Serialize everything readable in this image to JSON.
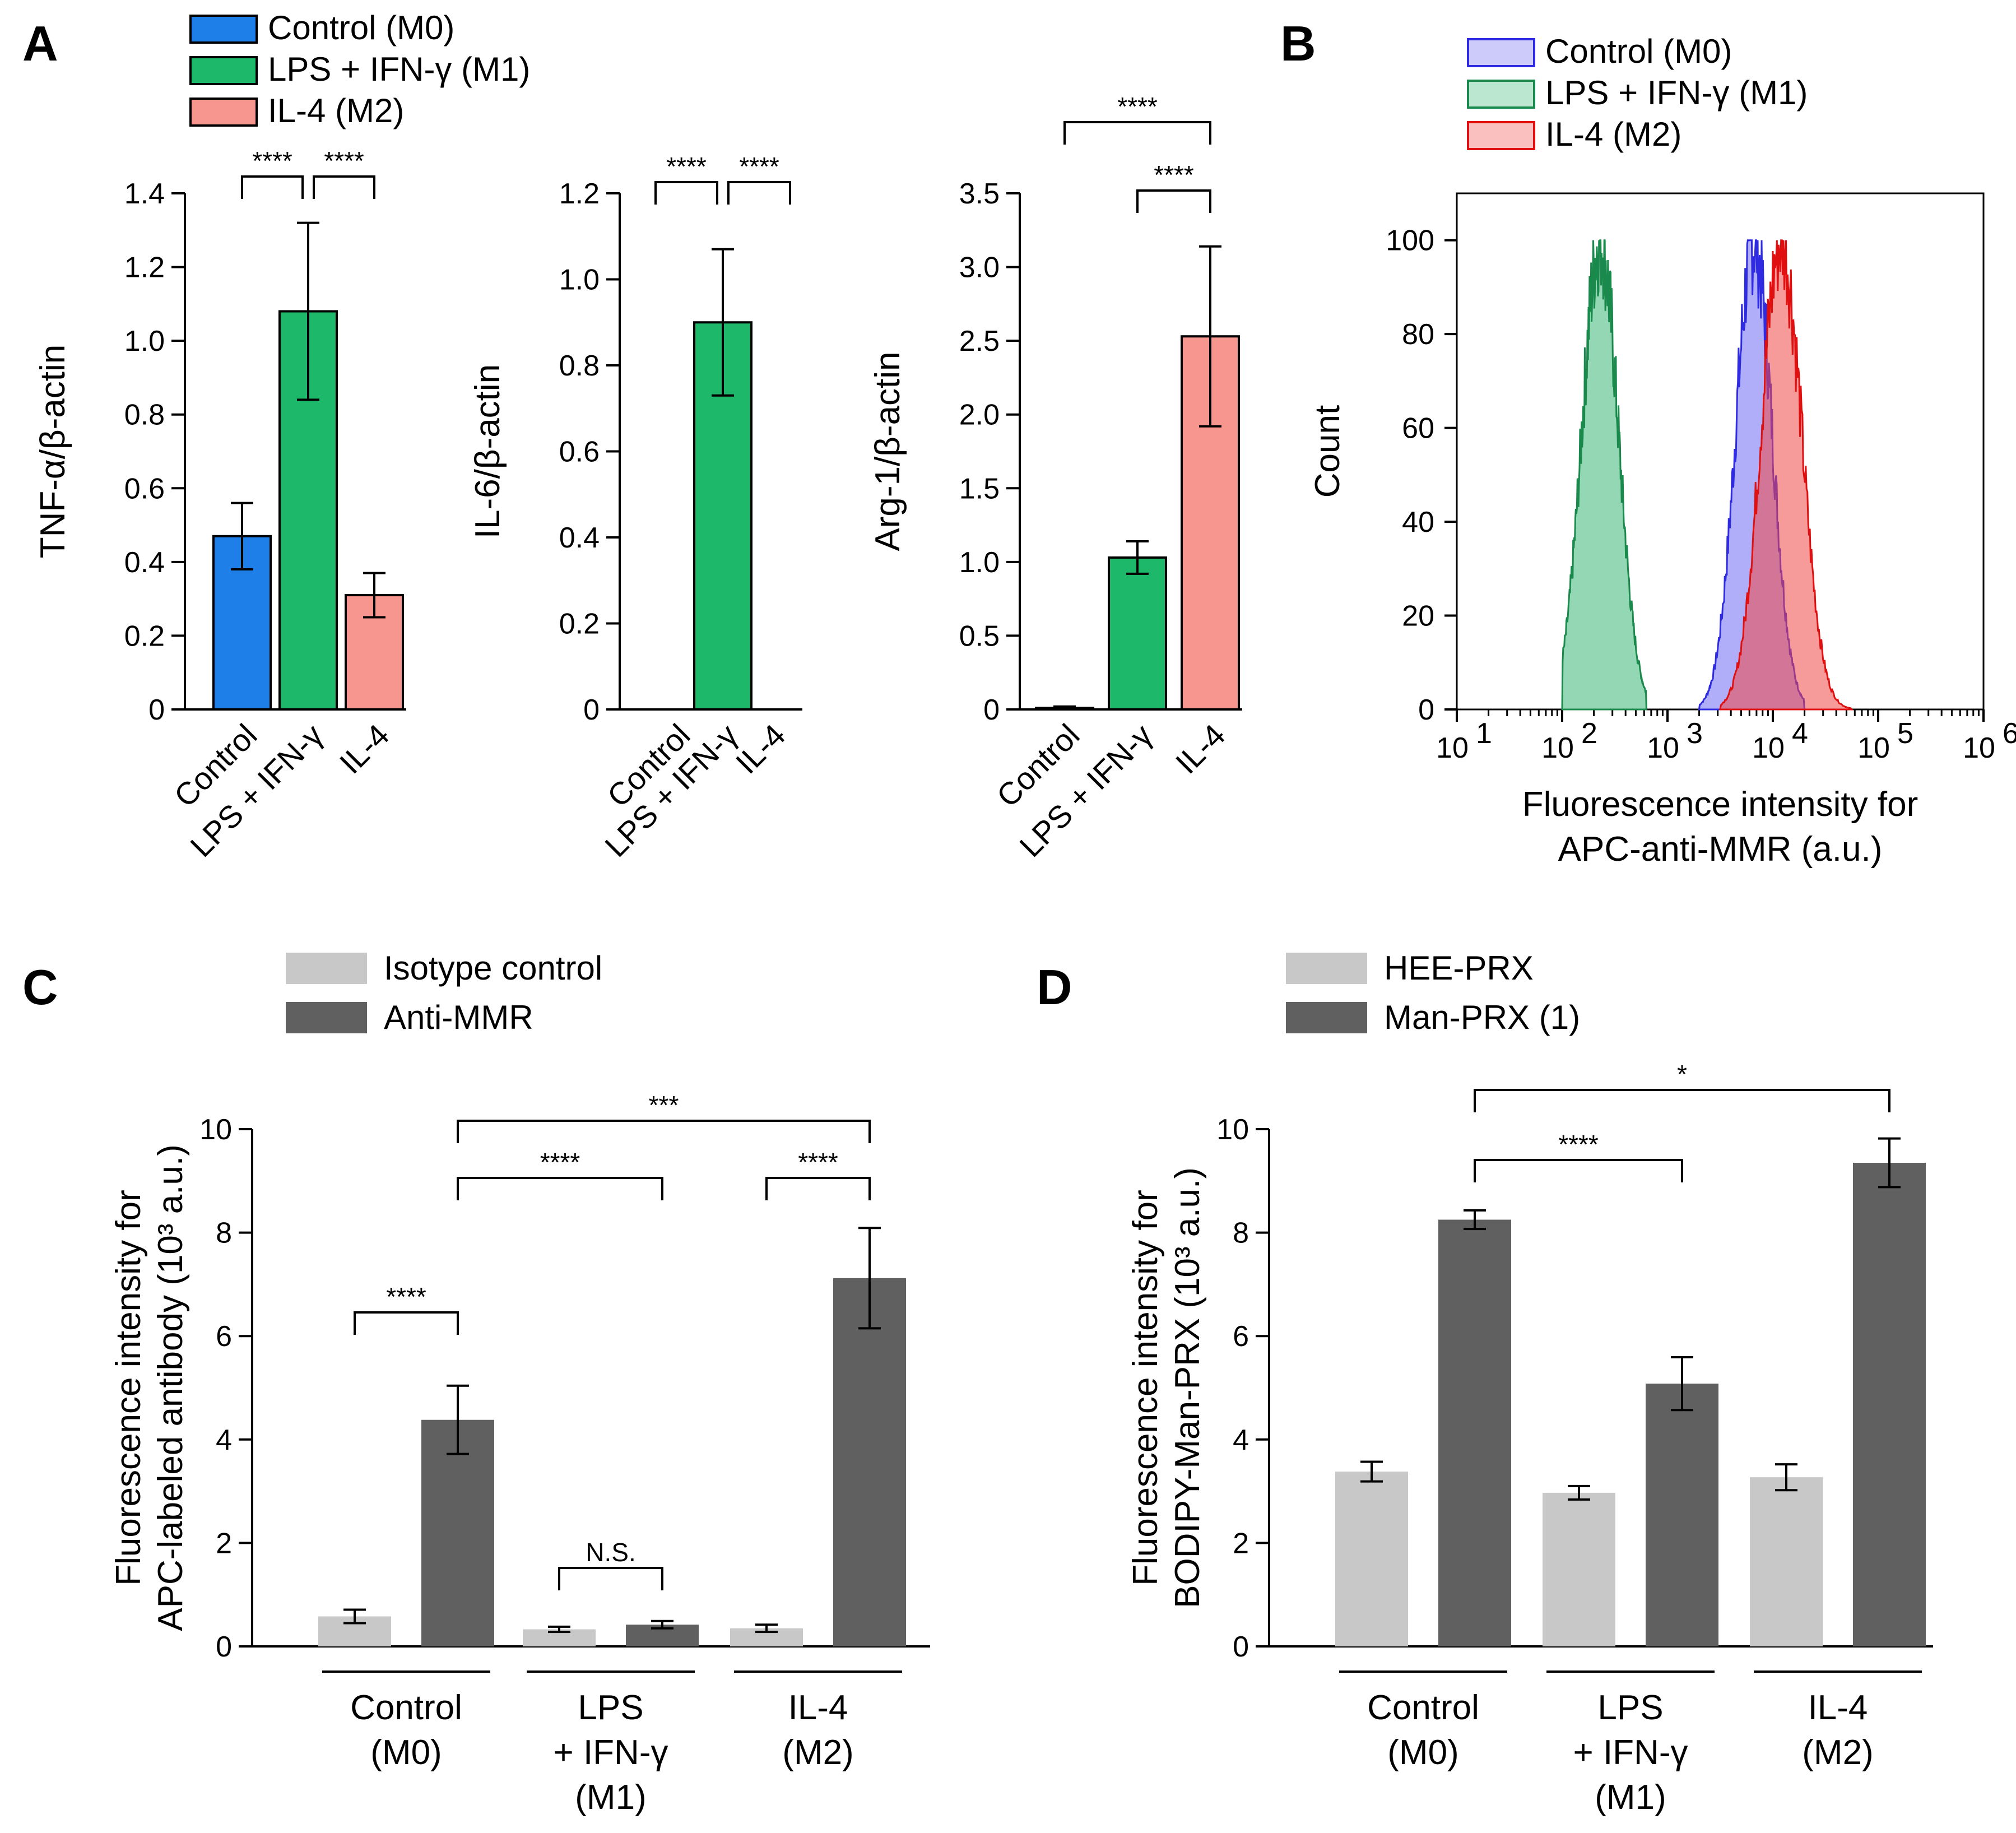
{
  "panel_labels": [
    "A",
    "B",
    "C",
    "D"
  ],
  "colors": {
    "control": "#1E7FE8",
    "m1": "#1DB86A",
    "m2": "#F7968E",
    "light_gray": "#C8C8C8",
    "dark_gray": "#606060",
    "hist_blue": "#6F6BF2",
    "hist_green": "#3DB678",
    "hist_red": "#F04747"
  },
  "chart_data": [
    {
      "id": "A1",
      "type": "bar",
      "title": "",
      "legend": [
        "Control (M0)",
        "LPS + IFN-γ (M1)",
        "IL-4 (M2)"
      ],
      "categories": [
        "Control",
        "LPS + IFN-γ",
        "IL-4"
      ],
      "values": [
        0.47,
        1.08,
        0.31
      ],
      "errors": [
        0.09,
        0.24,
        0.06
      ],
      "ylabel": "TNF-α/β-actin",
      "ylim": [
        0,
        1.4
      ],
      "yticks": [
        "0",
        "0.2",
        "0.4",
        "0.6",
        "0.8",
        "1.0",
        "1.2",
        "1.4"
      ],
      "significance": [
        {
          "from": 0,
          "to": 1,
          "label": "****"
        },
        {
          "from": 1,
          "to": 2,
          "label": "****"
        }
      ]
    },
    {
      "id": "A2",
      "type": "bar",
      "categories": [
        "Control",
        "LPS + IFN-γ",
        "IL-4"
      ],
      "values": [
        0.0,
        0.9,
        0.0
      ],
      "errors": [
        0.0,
        0.17,
        0.0
      ],
      "ylabel": "IL-6/β-actin",
      "ylim": [
        0,
        1.2
      ],
      "yticks": [
        "0",
        "0.2",
        "0.4",
        "0.6",
        "0.8",
        "1.0",
        "1.2"
      ],
      "significance": [
        {
          "from": 0,
          "to": 1,
          "label": "****"
        },
        {
          "from": 1,
          "to": 2,
          "label": "****"
        }
      ]
    },
    {
      "id": "A3",
      "type": "bar",
      "categories": [
        "Control",
        "LPS + IFN-γ",
        "IL-4"
      ],
      "values": [
        0.01,
        1.03,
        2.53
      ],
      "errors": [
        0.01,
        0.11,
        0.61
      ],
      "ylabel": "Arg-1/β-actin",
      "ylim": [
        0,
        3.5
      ],
      "yticks": [
        "0",
        "0.5",
        "1.0",
        "1.5",
        "2.0",
        "2.5",
        "3.0",
        "3.5"
      ],
      "significance": [
        {
          "from": 0,
          "to": 2,
          "label": "****"
        },
        {
          "from": 1,
          "to": 2,
          "label": "****"
        }
      ]
    },
    {
      "id": "B",
      "type": "area",
      "xscale": "log",
      "xlim_exp": [
        1,
        6
      ],
      "xticks": [
        "10",
        "10",
        "10",
        "10",
        "10",
        "10"
      ],
      "xtick_exponents": [
        "1",
        "2",
        "3",
        "4",
        "5",
        "6"
      ],
      "ylim": [
        0,
        110
      ],
      "yticks": [
        "0",
        "20",
        "40",
        "60",
        "80",
        "100"
      ],
      "ylabel": "Count",
      "xlabel_line1": "Fluorescence intensity for",
      "xlabel_line2": "APC-anti-MMR (a.u.)",
      "legend": [
        "Control (M0)",
        "LPS + IFN-γ (M1)",
        "IL-4 (M2)"
      ],
      "series": [
        {
          "name": "Control (M0)",
          "peak_log10": 3.82,
          "sigma": 0.17,
          "start_log10": 3.3,
          "end_log10": 4.3,
          "max_count": 100
        },
        {
          "name": "LPS + IFN-γ (M1)",
          "peak_log10": 2.36,
          "sigma": 0.17,
          "start_log10": 2.0,
          "end_log10": 2.8,
          "max_count": 100
        },
        {
          "name": "IL-4 (M2)",
          "peak_log10": 4.08,
          "sigma": 0.19,
          "start_log10": 3.5,
          "end_log10": 4.75,
          "max_count": 100
        }
      ]
    },
    {
      "id": "C",
      "type": "bar",
      "legend": [
        "Isotype control",
        "Anti-MMR"
      ],
      "groups": [
        "Control\n(M0)",
        "LPS\n+ IFN-γ\n(M1)",
        "IL-4\n(M2)"
      ],
      "series": [
        {
          "name": "Isotype control",
          "values": [
            0.58,
            0.33,
            0.35
          ],
          "errors": [
            0.13,
            0.05,
            0.07
          ]
        },
        {
          "name": "Anti-MMR",
          "values": [
            4.38,
            0.42,
            7.12
          ],
          "errors": [
            0.66,
            0.07,
            0.97
          ]
        }
      ],
      "ylabel_line1": "Fluorescence intensity for",
      "ylabel_line2": "APC-labeled antibody (10³ a.u.)",
      "ylim": [
        0,
        10
      ],
      "yticks": [
        "0",
        "2",
        "4",
        "6",
        "8",
        "10"
      ],
      "significance": [
        {
          "from": [
            0,
            0
          ],
          "to": [
            0,
            1
          ],
          "label": "****"
        },
        {
          "from": [
            1,
            0
          ],
          "to": [
            1,
            1
          ],
          "label": "N.S."
        },
        {
          "from": [
            0,
            1
          ],
          "to": [
            1,
            1
          ],
          "label": "****"
        },
        {
          "from": [
            2,
            0
          ],
          "to": [
            2,
            1
          ],
          "label": "****"
        },
        {
          "from": [
            0,
            1
          ],
          "to": [
            2,
            1
          ],
          "label": "***"
        }
      ]
    },
    {
      "id": "D",
      "type": "bar",
      "legend": [
        "HEE-PRX",
        "Man-PRX (1)"
      ],
      "groups": [
        "Control\n(M0)",
        "LPS\n+ IFN-γ\n(M1)",
        "IL-4\n(M2)"
      ],
      "series": [
        {
          "name": "HEE-PRX",
          "values": [
            3.38,
            2.97,
            3.27
          ],
          "errors": [
            0.19,
            0.13,
            0.25
          ]
        },
        {
          "name": "Man-PRX (1)",
          "values": [
            8.25,
            5.08,
            9.35
          ],
          "errors": [
            0.18,
            0.51,
            0.47
          ]
        }
      ],
      "ylabel_line1": "Fluorescence intensity for",
      "ylabel_line2": "BODIPY-Man-PRX (10³ a.u.)",
      "ylim": [
        0,
        10
      ],
      "yticks": [
        "0",
        "2",
        "4",
        "6",
        "8",
        "10"
      ],
      "significance": [
        {
          "from": [
            0,
            1
          ],
          "to": [
            1,
            1
          ],
          "label": "****"
        },
        {
          "from": [
            0,
            1
          ],
          "to": [
            2,
            1
          ],
          "label": "*"
        }
      ]
    }
  ]
}
